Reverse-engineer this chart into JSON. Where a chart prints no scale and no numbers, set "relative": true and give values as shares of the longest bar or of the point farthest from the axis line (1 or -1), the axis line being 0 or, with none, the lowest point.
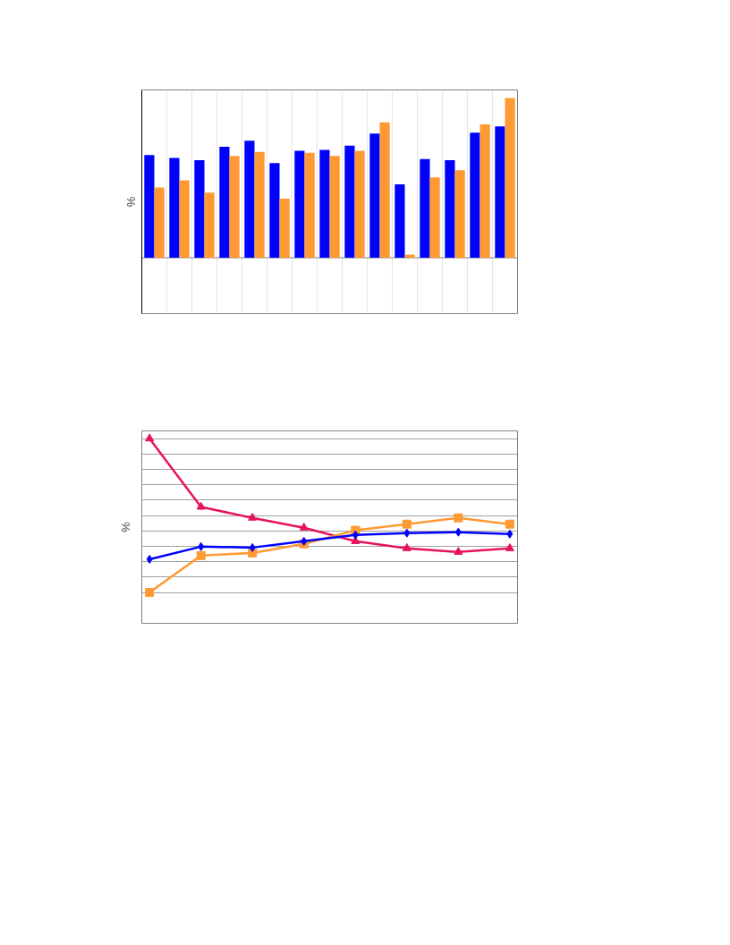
{
  "chart_data": [
    {
      "type": "bar",
      "ylabel": "%",
      "relative": true,
      "grid": "x",
      "categories": [
        null,
        null,
        null,
        null,
        null,
        null,
        null,
        null,
        null,
        null,
        null,
        null,
        null,
        null,
        null
      ],
      "series": [
        {
          "color": "#0000ff",
          "values": [
            0.643,
            0.624,
            0.611,
            0.694,
            0.732,
            0.592,
            0.669,
            0.675,
            0.701,
            0.777,
            0.459,
            0.618,
            0.611,
            0.783,
            0.822
          ]
        },
        {
          "color": "#ff9933",
          "values": [
            0.439,
            0.484,
            0.408,
            0.637,
            0.662,
            0.369,
            0.656,
            0.637,
            0.669,
            0.847,
            0.019,
            0.503,
            0.548,
            0.834,
            1.0
          ]
        }
      ]
    },
    {
      "type": "line",
      "ylabel": "%",
      "relative": true,
      "grid": "y",
      "categories": [
        null,
        null,
        null,
        null,
        null,
        null,
        null,
        null
      ],
      "series": [
        {
          "color": "#0000ff",
          "marker": "diamond",
          "values": [
            0.216,
            0.298,
            0.292,
            0.333,
            0.374,
            0.386,
            0.392,
            0.38
          ]
        },
        {
          "color": "#ff9933",
          "marker": "square",
          "values": [
            0.0,
            0.24,
            0.257,
            0.316,
            0.404,
            0.444,
            0.485,
            0.444
          ]
        },
        {
          "color": "#e8125c",
          "marker": "triangle",
          "values": [
            1.0,
            0.556,
            0.485,
            0.421,
            0.333,
            0.287,
            0.263,
            0.287
          ]
        }
      ]
    }
  ]
}
